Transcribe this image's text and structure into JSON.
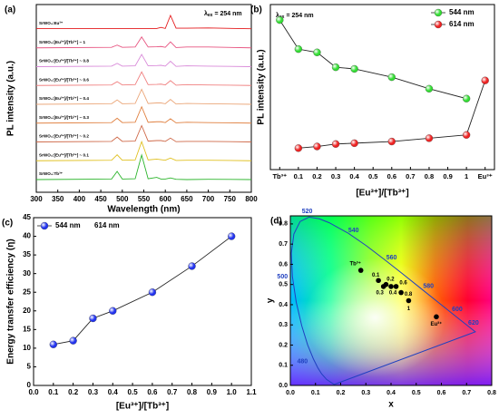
{
  "chart_data": [
    {
      "type": "line",
      "panel_label": "(a)",
      "stacked": true,
      "x_label": "Wavelength (nm)",
      "y_label": "PL intensity (a.u.)",
      "annotation": {
        "symbol": "λ",
        "subscript": "ex",
        "text": "= 254 nm"
      },
      "xlim": [
        300,
        800
      ],
      "xticks": [
        300,
        350,
        400,
        450,
        500,
        550,
        600,
        650,
        700,
        750,
        800
      ],
      "x": [
        300,
        475,
        488,
        500,
        530,
        545,
        560,
        580,
        590,
        600,
        612,
        625,
        650,
        700,
        800
      ],
      "series": [
        {
          "name": "SrWO₄:Eu³⁺",
          "color": "#e41a1c",
          "values": [
            2,
            2,
            2,
            2,
            2,
            2,
            2,
            2,
            6,
            2,
            50,
            3,
            3,
            4,
            1
          ]
        },
        {
          "name": "SrWO₄:[Eu³⁺]/[Tb³⁺] ~ 1",
          "color": "#e75480",
          "values": [
            0,
            2,
            10,
            2,
            3,
            40,
            3,
            4,
            5,
            2,
            22,
            1,
            3,
            3,
            0
          ]
        },
        {
          "name": "SrWO₄:[Eu³⁺]/[Tb³⁺] ~ 0.8",
          "color": "#d98ad9",
          "values": [
            0,
            2,
            12,
            2,
            3,
            45,
            3,
            4,
            5,
            2,
            20,
            1,
            3,
            2,
            0
          ]
        },
        {
          "name": "SrWO₄:[Eu³⁺]/[Tb³⁺] ~ 0.6",
          "color": "#f08080",
          "values": [
            0,
            2,
            14,
            2,
            3,
            50,
            3,
            4,
            5,
            2,
            18,
            1,
            3,
            2,
            0
          ]
        },
        {
          "name": "SrWO₄:[Eu³⁺]/[Tb³⁺] ~ 0.4",
          "color": "#eba77a",
          "values": [
            0,
            2,
            16,
            2,
            3,
            55,
            3,
            5,
            5,
            2,
            18,
            1,
            3,
            2,
            0
          ]
        },
        {
          "name": "SrWO₄:[Eu³⁺]/[Tb³⁺] ~ 0.3",
          "color": "#e08040",
          "values": [
            0,
            2,
            18,
            2,
            3,
            60,
            3,
            5,
            5,
            2,
            16,
            1,
            3,
            2,
            0
          ]
        },
        {
          "name": "SrWO₄:[Eu³⁺]/[Tb³⁺] ~ 0.2",
          "color": "#cf6a4a",
          "values": [
            0,
            2,
            18,
            2,
            3,
            60,
            3,
            5,
            5,
            2,
            14,
            1,
            2,
            2,
            0
          ]
        },
        {
          "name": "SrWO₄:[Eu³⁺]/[Tb³⁺] ~ 0.1",
          "color": "#e0c020",
          "values": [
            0,
            2,
            22,
            2,
            3,
            70,
            3,
            6,
            4,
            2,
            10,
            1,
            2,
            2,
            0
          ]
        },
        {
          "name": "SrWO₄:Tb³⁺",
          "color": "#2cb52c",
          "values": [
            0,
            2,
            30,
            2,
            3,
            90,
            3,
            8,
            2,
            2,
            6,
            1,
            0,
            1,
            0
          ]
        }
      ]
    },
    {
      "type": "line",
      "panel_label": "(b)",
      "x_label": "[Eu³⁺]/[Tb³⁺]",
      "y_label": "PL intensity (a.u.)",
      "annotation": {
        "symbol": "λ",
        "subscript": "ex",
        "text": "= 254 nm"
      },
      "line_color": "#222222",
      "legend": "upper right",
      "xlim": [
        -0.05,
        1.15
      ],
      "ylim": [
        0,
        100
      ],
      "xticks": [
        {
          "value": 0,
          "label": "Tb³⁺"
        },
        0.1,
        0.2,
        0.3,
        0.4,
        0.5,
        0.6,
        0.7,
        0.8,
        0.9,
        1,
        {
          "value": 1.1,
          "label": "Eu³⁺"
        }
      ],
      "x": [
        0,
        0.1,
        0.2,
        0.3,
        0.4,
        0.6,
        0.8,
        1,
        1.1
      ],
      "series": [
        {
          "name": "544 nm",
          "color": "#33dd33",
          "values": [
            90.6,
            73,
            71,
            62,
            61,
            56,
            49,
            43,
            null
          ]
        },
        {
          "name": "614 nm",
          "color": "#ee2222",
          "values": [
            null,
            13,
            14,
            15.5,
            16,
            17,
            19,
            21,
            54
          ]
        }
      ]
    },
    {
      "type": "line",
      "panel_label": "(c)",
      "x_label": "[Eu³⁺]/[Tb³⁺]",
      "y_label": "Energy transfer efficiency (η)",
      "line_color": "#222222",
      "legend": "upper left",
      "legend_extra_label": "614 nm",
      "xlim": [
        0,
        1.1
      ],
      "ylim": [
        0,
        45
      ],
      "xticks": [
        {
          "value": 0,
          "label": "0.0"
        },
        0.1,
        0.2,
        0.3,
        0.4,
        0.5,
        0.6,
        0.7,
        0.8,
        0.9,
        {
          "value": 1,
          "label": "1.0"
        },
        1.1
      ],
      "yticks": [
        0,
        5,
        10,
        15,
        20,
        25,
        30,
        35,
        40,
        45
      ],
      "x": [
        0.1,
        0.2,
        0.3,
        0.4,
        0.6,
        0.8,
        1.0
      ],
      "series": [
        {
          "name": "544 nm",
          "color": "#2233ee",
          "values": [
            11,
            12,
            18,
            20,
            25,
            32,
            40
          ]
        }
      ]
    },
    {
      "type": "scatter",
      "panel_label": "(d)",
      "x_label": "x",
      "y_label": "y",
      "xlim": [
        0,
        0.8
      ],
      "ylim": [
        0,
        0.84
      ],
      "xticks": [
        {
          "value": 0,
          "label": "0.0"
        },
        0.1,
        0.2,
        0.3,
        0.4,
        0.5,
        0.6,
        0.7,
        0.8
      ],
      "yticks": [
        {
          "value": 0,
          "label": "0.0"
        },
        0.1,
        0.2,
        0.3,
        0.4,
        0.5,
        0.6,
        0.7,
        0.8
      ],
      "locus_color": "#2040c0",
      "point_color": "#000000",
      "wavelength_labels": [
        480,
        500,
        520,
        540,
        560,
        580,
        600,
        620
      ],
      "points": {
        "labels": [
          "Tb³⁺",
          "0.1",
          "0.2",
          "0.3",
          "0.4",
          "0.6",
          "0.8",
          "1",
          "Eu³⁺"
        ],
        "x": [
          0.28,
          0.35,
          0.38,
          0.37,
          0.4,
          0.42,
          0.44,
          0.47,
          0.58
        ],
        "y": [
          0.57,
          0.52,
          0.5,
          0.49,
          0.49,
          0.49,
          0.46,
          0.42,
          0.34
        ]
      }
    }
  ]
}
